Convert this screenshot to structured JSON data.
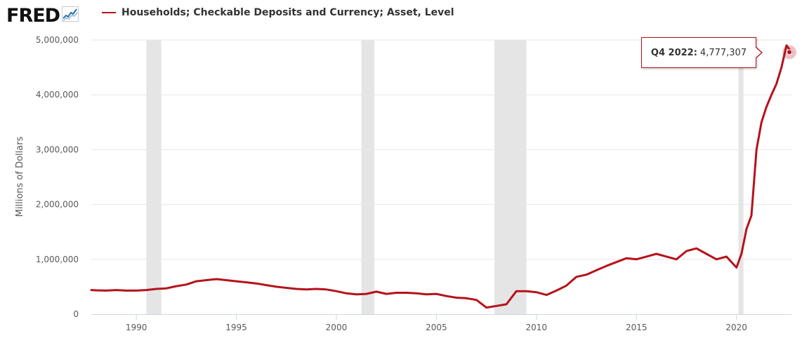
{
  "header": {
    "logo_text": "FRED",
    "logo_icon": "fred-sparkline-icon",
    "legend_label": "Households; Checkable Deposits and Currency; Asset, Level"
  },
  "tooltip": {
    "period": "Q4 2022:",
    "value": "4,777,307"
  },
  "colors": {
    "series": "#b5121b",
    "recession": "#e5e5e5",
    "grid": "#e6e6e6",
    "tooltip_border": "#b5121b"
  },
  "chart_data": {
    "type": "line",
    "title": "",
    "xlabel": "",
    "ylabel": "Millions of Dollars",
    "xlim": [
      1987.75,
      2022.75
    ],
    "ylim": [
      0,
      5000000
    ],
    "grid": true,
    "legend_placement": "top-left",
    "x_ticks": [
      1990,
      1995,
      2000,
      2005,
      2010,
      2015,
      2020
    ],
    "x_tick_labels": [
      "1990",
      "1995",
      "2000",
      "2005",
      "2010",
      "2015",
      "2020"
    ],
    "y_ticks": [
      0,
      1000000,
      2000000,
      3000000,
      4000000,
      5000000
    ],
    "y_tick_labels": [
      "0",
      "1,000,000",
      "2,000,000",
      "3,000,000",
      "4,000,000",
      "5,000,000"
    ],
    "recessions": [
      [
        1990.5,
        1991.25
      ],
      [
        2001.25,
        2001.9
      ],
      [
        2007.9,
        2009.5
      ],
      [
        2020.1,
        2020.35
      ]
    ],
    "highlight": {
      "x": 2022.75,
      "y": 4777307
    },
    "series": [
      {
        "name": "Households; Checkable Deposits and Currency; Asset, Level",
        "x": [
          1987.75,
          1988.0,
          1988.5,
          1989.0,
          1989.5,
          1990.0,
          1990.5,
          1991.0,
          1991.5,
          1992.0,
          1992.5,
          1993.0,
          1993.5,
          1994.0,
          1994.5,
          1995.0,
          1995.5,
          1996.0,
          1996.5,
          1997.0,
          1997.5,
          1998.0,
          1998.5,
          1999.0,
          1999.5,
          2000.0,
          2000.5,
          2001.0,
          2001.5,
          2002.0,
          2002.5,
          2003.0,
          2003.5,
          2004.0,
          2004.5,
          2005.0,
          2005.5,
          2006.0,
          2006.5,
          2007.0,
          2007.5,
          2008.0,
          2008.5,
          2009.0,
          2009.5,
          2010.0,
          2010.5,
          2011.0,
          2011.5,
          2012.0,
          2012.5,
          2013.0,
          2013.5,
          2014.0,
          2014.5,
          2015.0,
          2015.5,
          2016.0,
          2016.5,
          2017.0,
          2017.5,
          2018.0,
          2018.5,
          2019.0,
          2019.5,
          2020.0,
          2020.25,
          2020.5,
          2020.75,
          2021.0,
          2021.25,
          2021.5,
          2021.75,
          2022.0,
          2022.25,
          2022.5,
          2022.75
        ],
        "y": [
          440000,
          435000,
          430000,
          440000,
          430000,
          430000,
          440000,
          460000,
          470000,
          510000,
          540000,
          600000,
          620000,
          640000,
          620000,
          600000,
          580000,
          560000,
          530000,
          500000,
          480000,
          460000,
          450000,
          460000,
          450000,
          420000,
          380000,
          360000,
          370000,
          410000,
          370000,
          390000,
          390000,
          380000,
          360000,
          370000,
          330000,
          300000,
          290000,
          260000,
          120000,
          150000,
          180000,
          420000,
          420000,
          400000,
          350000,
          430000,
          520000,
          680000,
          720000,
          800000,
          880000,
          950000,
          1020000,
          1000000,
          1050000,
          1100000,
          1050000,
          1000000,
          1150000,
          1200000,
          1100000,
          1000000,
          1050000,
          850000,
          1100000,
          1550000,
          1800000,
          3000000,
          3500000,
          3780000,
          4000000,
          4200000,
          4500000,
          4900000,
          4777307
        ]
      }
    ]
  }
}
